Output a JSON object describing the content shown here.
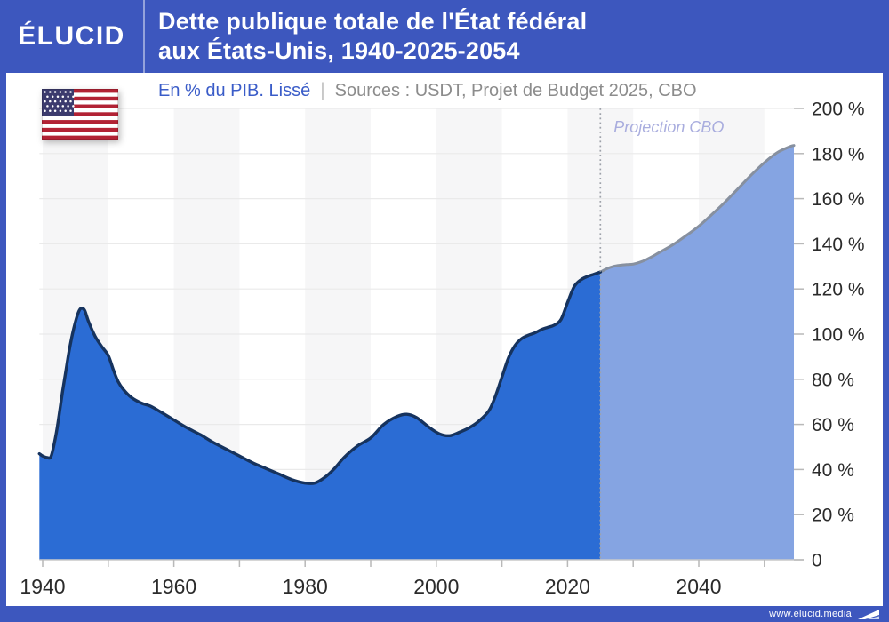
{
  "header": {
    "logo": "ÉLUCID",
    "title_line1": "Dette publique totale de l'État fédéral",
    "title_line2": "aux États-Unis, 1940-2025-2054"
  },
  "subtitle": {
    "metric": "En % du PIB. Lissé",
    "separator": "|",
    "sources": "Sources : USDT, Projet de Budget 2025, CBO"
  },
  "footer": {
    "url": "www.elucid.media"
  },
  "colors": {
    "brand_blue": "#3D57BE",
    "historical_fill": "#2B6CD4",
    "historical_stroke": "#16335E",
    "projection_fill": "#85A4E2",
    "projection_stroke": "#87909F",
    "band_gray": "#F6F6F7",
    "gridline": "#EAEAEA",
    "axis_line": "#C9C9C9",
    "tick": "#B9B9B9",
    "axis_text": "#2B2B2B",
    "divider_dots": "#9EA2AA",
    "annotation_text": "#A9ADDE",
    "flag_red": "#B22234",
    "flag_blue": "#3C3B6E"
  },
  "chart_data": {
    "type": "area",
    "title": "Dette publique totale de l'État fédéral aux États-Unis, 1940-2025-2054",
    "ylabel": "En % du PIB (lissé)",
    "xlim": [
      1939.5,
      2054.5
    ],
    "ylim": [
      0,
      200
    ],
    "grid": "horizontal",
    "legend_position": "none",
    "x_ticks": [
      {
        "year": 1940,
        "label": "1940"
      },
      {
        "year": 1960,
        "label": "1960"
      },
      {
        "year": 1980,
        "label": "1980"
      },
      {
        "year": 2000,
        "label": "2000"
      },
      {
        "year": 2020,
        "label": "2020"
      },
      {
        "year": 2040,
        "label": "2040"
      }
    ],
    "x_minor_ticks": [
      1940,
      1950,
      1960,
      1970,
      1980,
      1990,
      2000,
      2010,
      2020,
      2030,
      2040,
      2050
    ],
    "y_ticks": [
      {
        "value": 0,
        "label": "0"
      },
      {
        "value": 20,
        "label": "20 %"
      },
      {
        "value": 40,
        "label": "40 %"
      },
      {
        "value": 60,
        "label": "60 %"
      },
      {
        "value": 80,
        "label": "80 %"
      },
      {
        "value": 100,
        "label": "100 %"
      },
      {
        "value": 120,
        "label": "120 %"
      },
      {
        "value": 140,
        "label": "140 %"
      },
      {
        "value": 160,
        "label": "160 %"
      },
      {
        "value": 180,
        "label": "180 %"
      },
      {
        "value": 200,
        "label": "200 %"
      }
    ],
    "background": {
      "gray_decades": [
        1940,
        1960,
        1980,
        2000,
        2020,
        2040
      ]
    },
    "projection_divider_year": 2025,
    "annotation": {
      "label": "Projection CBO",
      "year": 2025
    },
    "series": [
      {
        "name": "Historique (USDT, Projet de Budget 2025)",
        "role": "historical",
        "points": [
          [
            1939.5,
            47
          ],
          [
            1940,
            46
          ],
          [
            1940.7,
            45.3
          ],
          [
            1941.3,
            46
          ],
          [
            1942,
            55
          ],
          [
            1942.5,
            64
          ],
          [
            1943,
            74
          ],
          [
            1943.5,
            83
          ],
          [
            1944,
            92
          ],
          [
            1944.5,
            99.5
          ],
          [
            1945,
            105.5
          ],
          [
            1945.5,
            110
          ],
          [
            1945.9,
            111.5
          ],
          [
            1946.4,
            110.5
          ],
          [
            1947,
            105.5
          ],
          [
            1948,
            99
          ],
          [
            1949,
            94.5
          ],
          [
            1950,
            90.5
          ],
          [
            1950.8,
            84
          ],
          [
            1951.5,
            79
          ],
          [
            1952.3,
            75.5
          ],
          [
            1953.5,
            72
          ],
          [
            1955,
            69.5
          ],
          [
            1956.5,
            68
          ],
          [
            1958,
            65.5
          ],
          [
            1960,
            62
          ],
          [
            1962,
            58.5
          ],
          [
            1964,
            55.5
          ],
          [
            1966,
            52
          ],
          [
            1968,
            49
          ],
          [
            1970,
            46
          ],
          [
            1972,
            43
          ],
          [
            1974,
            40.5
          ],
          [
            1976,
            38
          ],
          [
            1978,
            35.5
          ],
          [
            1980,
            34
          ],
          [
            1981.5,
            34
          ],
          [
            1983,
            36.5
          ],
          [
            1984.5,
            40.5
          ],
          [
            1986,
            45.5
          ],
          [
            1988,
            50.5
          ],
          [
            1990,
            54
          ],
          [
            1992,
            60
          ],
          [
            1994,
            63.5
          ],
          [
            1995.5,
            64.5
          ],
          [
            1997,
            63
          ],
          [
            1999,
            58.5
          ],
          [
            2000.5,
            55.8
          ],
          [
            2002,
            55
          ],
          [
            2003.5,
            56.5
          ],
          [
            2005,
            58.5
          ],
          [
            2006.5,
            61.5
          ],
          [
            2008,
            66
          ],
          [
            2009,
            72.5
          ],
          [
            2010,
            81
          ],
          [
            2011,
            89.5
          ],
          [
            2012,
            95
          ],
          [
            2013,
            98
          ],
          [
            2014,
            99.5
          ],
          [
            2015,
            100.5
          ],
          [
            2016,
            102
          ],
          [
            2017,
            103
          ],
          [
            2018,
            104
          ],
          [
            2019,
            106.5
          ],
          [
            2020,
            114
          ],
          [
            2021,
            121
          ],
          [
            2022,
            124
          ],
          [
            2023,
            125.5
          ],
          [
            2024,
            126.5
          ],
          [
            2025,
            127.5
          ]
        ]
      },
      {
        "name": "Projection CBO",
        "role": "projection",
        "points": [
          [
            2025,
            127.5
          ],
          [
            2026,
            129
          ],
          [
            2027,
            130
          ],
          [
            2028,
            130.5
          ],
          [
            2029,
            130.8
          ],
          [
            2030,
            131
          ],
          [
            2031,
            131.8
          ],
          [
            2032,
            133
          ],
          [
            2033,
            134.5
          ],
          [
            2034,
            136.2
          ],
          [
            2036,
            139.5
          ],
          [
            2038,
            143.5
          ],
          [
            2040,
            147.8
          ],
          [
            2042,
            153
          ],
          [
            2044,
            158.5
          ],
          [
            2046,
            164.5
          ],
          [
            2048,
            170.5
          ],
          [
            2050,
            176
          ],
          [
            2052,
            180.5
          ],
          [
            2054,
            183.2
          ],
          [
            2054.5,
            183.6
          ]
        ]
      }
    ]
  }
}
